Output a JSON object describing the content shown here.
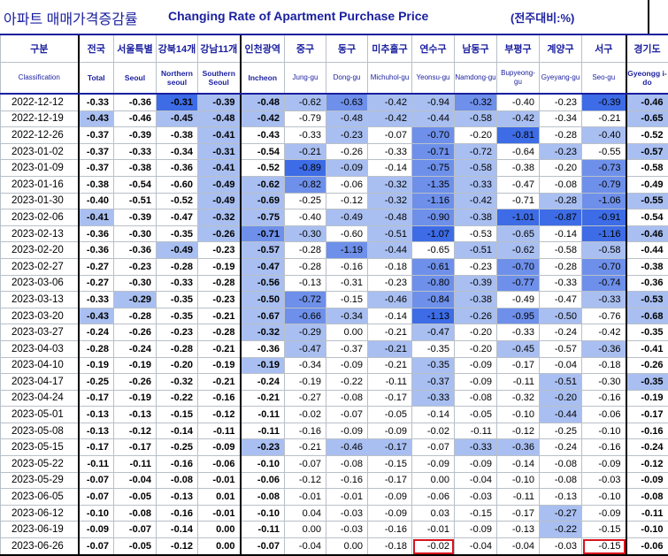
{
  "title": {
    "korean": "아파트 매매가격증감률",
    "english": "Changing Rate of Apartment Purchase Price",
    "unit": "(전주대비:%)"
  },
  "columns_ko": [
    "구분",
    "전국",
    "서울특별",
    "강북14개",
    "강남11개",
    "인천광역",
    "중구",
    "동구",
    "미추홀구",
    "연수구",
    "남동구",
    "부평구",
    "계양구",
    "서구",
    "경기도"
  ],
  "columns_en": [
    "Classification",
    "Total",
    "Seoul",
    "Northern seoul",
    "Southern Seoul",
    "Incheon",
    "Jung-gu",
    "Dong-gu",
    "Michuhol-gu",
    "Yeonsu-gu",
    "Namdong-gu",
    "Bupyeong-gu",
    "Gyeyang-gu",
    "Seo-gu",
    "Gyeongg i-do"
  ],
  "rows": [
    {
      "date": "2022-12-12",
      "v": [
        "-0.33",
        "-0.36",
        "-0.31",
        "-0.39",
        "-0.48",
        "-0.62",
        "-0.63",
        "-0.42",
        "-0.94",
        "-0.32",
        "-0.40",
        "-0.23",
        "-0.39",
        "-0.46"
      ]
    },
    {
      "date": "2022-12-19",
      "v": [
        "-0.43",
        "-0.46",
        "-0.45",
        "-0.48",
        "-0.42",
        "-0.79",
        "-0.48",
        "-0.42",
        "-0.44",
        "-0.58",
        "-0.42",
        "-0.34",
        "-0.21",
        "-0.65"
      ]
    },
    {
      "date": "2022-12-26",
      "v": [
        "-0.37",
        "-0.39",
        "-0.38",
        "-0.41",
        "-0.43",
        "-0.33",
        "-0.23",
        "-0.07",
        "-0.70",
        "-0.20",
        "-0.81",
        "-0.28",
        "-0.40",
        "-0.52"
      ]
    },
    {
      "date": "2023-01-02",
      "v": [
        "-0.37",
        "-0.33",
        "-0.34",
        "-0.31",
        "-0.54",
        "-0.21",
        "-0.26",
        "-0.33",
        "-0.71",
        "-0.72",
        "-0.64",
        "-0.23",
        "-0.55",
        "-0.57"
      ]
    },
    {
      "date": "2023-01-09",
      "v": [
        "-0.37",
        "-0.38",
        "-0.36",
        "-0.41",
        "-0.52",
        "-0.89",
        "-0.09",
        "-0.14",
        "-0.75",
        "-0.58",
        "-0.38",
        "-0.20",
        "-0.73",
        "-0.58"
      ]
    },
    {
      "date": "2023-01-16",
      "v": [
        "-0.38",
        "-0.54",
        "-0.60",
        "-0.49",
        "-0.62",
        "-0.82",
        "-0.06",
        "-0.32",
        "-1.35",
        "-0.33",
        "-0.47",
        "-0.08",
        "-0.79",
        "-0.49"
      ]
    },
    {
      "date": "2023-01-30",
      "v": [
        "-0.40",
        "-0.51",
        "-0.52",
        "-0.49",
        "-0.69",
        "-0.25",
        "-0.12",
        "-0.32",
        "-1.16",
        "-0.42",
        "-0.71",
        "-0.28",
        "-1.06",
        "-0.55"
      ]
    },
    {
      "date": "2023-02-06",
      "v": [
        "-0.41",
        "-0.39",
        "-0.47",
        "-0.32",
        "-0.75",
        "-0.40",
        "-0.49",
        "-0.48",
        "-0.90",
        "-0.38",
        "-1.01",
        "-0.87",
        "-0.91",
        "-0.54"
      ]
    },
    {
      "date": "2023-02-13",
      "v": [
        "-0.36",
        "-0.30",
        "-0.35",
        "-0.26",
        "-0.71",
        "-0.30",
        "-0.60",
        "-0.51",
        "-1.07",
        "-0.53",
        "-0.65",
        "-0.14",
        "-1.16",
        "-0.46"
      ]
    },
    {
      "date": "2023-02-20",
      "v": [
        "-0.36",
        "-0.36",
        "-0.49",
        "-0.23",
        "-0.57",
        "-0.28",
        "-1.19",
        "-0.44",
        "-0.65",
        "-0.51",
        "-0.62",
        "-0.58",
        "-0.58",
        "-0.44"
      ]
    },
    {
      "date": "2023-02-27",
      "v": [
        "-0.27",
        "-0.23",
        "-0.28",
        "-0.19",
        "-0.47",
        "-0.28",
        "-0.16",
        "-0.18",
        "-0.61",
        "-0.23",
        "-0.70",
        "-0.28",
        "-0.70",
        "-0.38"
      ]
    },
    {
      "date": "2023-03-06",
      "v": [
        "-0.27",
        "-0.30",
        "-0.33",
        "-0.28",
        "-0.56",
        "-0.13",
        "-0.31",
        "-0.23",
        "-0.80",
        "-0.39",
        "-0.77",
        "-0.33",
        "-0.74",
        "-0.36"
      ]
    },
    {
      "date": "2023-03-13",
      "v": [
        "-0.33",
        "-0.29",
        "-0.35",
        "-0.23",
        "-0.50",
        "-0.72",
        "-0.15",
        "-0.46",
        "-0.84",
        "-0.38",
        "-0.49",
        "-0.47",
        "-0.33",
        "-0.53"
      ]
    },
    {
      "date": "2023-03-20",
      "v": [
        "-0.43",
        "-0.28",
        "-0.35",
        "-0.21",
        "-0.67",
        "-0.66",
        "-0.34",
        "-0.14",
        "-1.13",
        "-0.26",
        "-0.95",
        "-0.50",
        "-0.76",
        "-0.68"
      ]
    },
    {
      "date": "2023-03-27",
      "v": [
        "-0.24",
        "-0.26",
        "-0.23",
        "-0.28",
        "-0.32",
        "-0.29",
        "0.00",
        "-0.21",
        "-0.47",
        "-0.20",
        "-0.33",
        "-0.24",
        "-0.42",
        "-0.35"
      ]
    },
    {
      "date": "2023-04-03",
      "v": [
        "-0.28",
        "-0.24",
        "-0.28",
        "-0.21",
        "-0.36",
        "-0.47",
        "-0.37",
        "-0.21",
        "-0.35",
        "-0.20",
        "-0.45",
        "-0.57",
        "-0.36",
        "-0.41"
      ]
    },
    {
      "date": "2023-04-10",
      "v": [
        "-0.19",
        "-0.19",
        "-0.20",
        "-0.19",
        "-0.19",
        "-0.34",
        "-0.09",
        "-0.21",
        "-0.35",
        "-0.09",
        "-0.17",
        "-0.04",
        "-0.18",
        "-0.26"
      ]
    },
    {
      "date": "2023-04-17",
      "v": [
        "-0.25",
        "-0.26",
        "-0.32",
        "-0.21",
        "-0.24",
        "-0.19",
        "-0.22",
        "-0.11",
        "-0.37",
        "-0.09",
        "-0.11",
        "-0.51",
        "-0.30",
        "-0.35"
      ]
    },
    {
      "date": "2023-04-24",
      "v": [
        "-0.17",
        "-0.19",
        "-0.22",
        "-0.16",
        "-0.21",
        "-0.27",
        "-0.08",
        "-0.17",
        "-0.33",
        "-0.08",
        "-0.32",
        "-0.20",
        "-0.16",
        "-0.19"
      ]
    },
    {
      "date": "2023-05-01",
      "v": [
        "-0.13",
        "-0.13",
        "-0.15",
        "-0.12",
        "-0.11",
        "-0.02",
        "-0.07",
        "-0.05",
        "-0.14",
        "-0.05",
        "-0.10",
        "-0.44",
        "-0.06",
        "-0.17"
      ]
    },
    {
      "date": "2023-05-08",
      "v": [
        "-0.13",
        "-0.12",
        "-0.14",
        "-0.11",
        "-0.11",
        "-0.16",
        "-0.09",
        "-0.09",
        "-0.02",
        "-0.11",
        "-0.12",
        "-0.25",
        "-0.10",
        "-0.16"
      ]
    },
    {
      "date": "2023-05-15",
      "v": [
        "-0.17",
        "-0.17",
        "-0.25",
        "-0.09",
        "-0.23",
        "-0.21",
        "-0.46",
        "-0.17",
        "-0.07",
        "-0.33",
        "-0.36",
        "-0.24",
        "-0.16",
        "-0.24"
      ]
    },
    {
      "date": "2023-05-22",
      "v": [
        "-0.11",
        "-0.11",
        "-0.16",
        "-0.06",
        "-0.10",
        "-0.07",
        "-0.08",
        "-0.15",
        "-0.09",
        "-0.09",
        "-0.14",
        "-0.08",
        "-0.09",
        "-0.12"
      ]
    },
    {
      "date": "2023-05-29",
      "v": [
        "-0.07",
        "-0.04",
        "-0.08",
        "-0.01",
        "-0.06",
        "-0.12",
        "-0.16",
        "-0.17",
        "0.00",
        "-0.04",
        "-0.10",
        "-0.08",
        "-0.03",
        "-0.09"
      ]
    },
    {
      "date": "2023-06-05",
      "v": [
        "-0.07",
        "-0.05",
        "-0.13",
        "0.01",
        "-0.08",
        "-0.01",
        "-0.01",
        "-0.09",
        "-0.06",
        "-0.03",
        "-0.11",
        "-0.13",
        "-0.10",
        "-0.08"
      ]
    },
    {
      "date": "2023-06-12",
      "v": [
        "-0.10",
        "-0.08",
        "-0.16",
        "-0.01",
        "-0.10",
        "0.04",
        "-0.03",
        "-0.09",
        "0.03",
        "-0.15",
        "-0.17",
        "-0.27",
        "-0.09",
        "-0.11"
      ]
    },
    {
      "date": "2023-06-19",
      "v": [
        "-0.09",
        "-0.07",
        "-0.14",
        "0.00",
        "-0.11",
        "0.00",
        "-0.03",
        "-0.16",
        "-0.01",
        "-0.09",
        "-0.13",
        "-0.22",
        "-0.15",
        "-0.10"
      ]
    },
    {
      "date": "2023-06-26",
      "v": [
        "-0.07",
        "-0.05",
        "-0.12",
        "0.00",
        "-0.07",
        "-0.04",
        "0.00",
        "-0.18",
        "-0.02",
        "-0.04",
        "-0.04",
        "-0.03",
        "-0.15",
        "-0.06"
      ]
    }
  ],
  "shade": [
    "..dlllmllm..dl",
    "l.lll.lllll..l",
    "...l..l.m.d.l.",
    "...l.l..ml.l.l",
    "...l.dl.ml..m.",
    "...llm.lml..m.",
    "...ll..lml.lml",
    "l..ll.llmlddd.",
    "...lml.ld.l.dl",
    "..l.l.ml.ll.l.",
    "....l...m.m.m.",
    "....l...mlm.m.",
    ".l..lm.lml..ll",
    "l...lml.dlml.l",
    "....ll..l.....",
    ".....l.l..l.l.",
    "....l...l.....",
    "........l..l.l",
    "........l..l..",
    "...........l..",
    "..............",
    "....l.ll.ll...",
    "..............",
    "..............",
    "..............",
    "...........l..",
    "...........l..",
    ".............."
  ],
  "highlight_cells": [
    [
      27,
      9
    ],
    [
      27,
      13
    ]
  ],
  "bold_cols": [
    1,
    2,
    3,
    4,
    5,
    14
  ],
  "colors": {
    "title": "#1a1f9e",
    "light": "#a9bff1",
    "medium": "#6e90ea",
    "dark": "#3d6ce6",
    "highlight": "#d8141c"
  }
}
